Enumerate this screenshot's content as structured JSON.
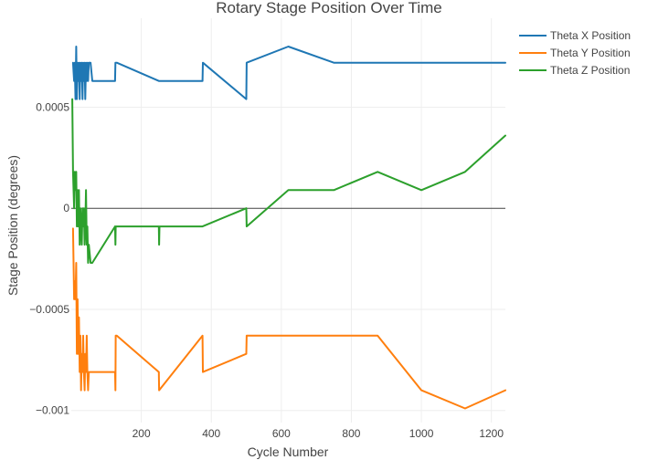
{
  "chart_data": {
    "type": "line",
    "title": "Rotary Stage Position Over Time",
    "xlabel": "Cycle Number",
    "ylabel": "Stage Position (degrees)",
    "xlim": [
      0,
      1240
    ],
    "ylim": [
      -0.00106,
      0.00094
    ],
    "x_ticks": [
      200,
      400,
      600,
      800,
      1000,
      1200
    ],
    "x_tick_labels": [
      "200",
      "400",
      "600",
      "800",
      "1000",
      "1200"
    ],
    "y_ticks": [
      -0.001,
      -0.0005,
      0,
      0.0005
    ],
    "y_tick_labels": [
      "−0.001",
      "−0.0005",
      "0",
      "0.0005"
    ],
    "legend_position": "top-right",
    "series": [
      {
        "name": "Theta X Position",
        "color": "#1f77b4",
        "x": [
          5,
          8,
          10,
          12,
          14,
          16,
          18,
          20,
          22,
          24,
          26,
          28,
          30,
          32,
          34,
          36,
          38,
          40,
          42,
          44,
          46,
          48,
          50,
          55,
          60,
          125,
          126,
          127,
          130,
          250,
          375,
          376,
          500,
          501,
          620,
          750,
          875,
          1000,
          1125,
          1240
        ],
        "y": [
          0.00072,
          0.00063,
          0.00072,
          0.00054,
          0.0008,
          0.00054,
          0.00072,
          0.00063,
          0.00072,
          0.00054,
          0.00072,
          0.00063,
          0.00072,
          0.00054,
          0.00072,
          0.00063,
          0.00072,
          0.00054,
          0.00072,
          0.00063,
          0.00072,
          0.00063,
          0.00072,
          0.00072,
          0.00063,
          0.00063,
          0.00072,
          0.00072,
          0.00072,
          0.00063,
          0.00063,
          0.00072,
          0.00054,
          0.00072,
          0.0008,
          0.00072,
          0.00072,
          0.00072,
          0.00072,
          0.00072
        ]
      },
      {
        "name": "Theta Y Position",
        "color": "#ff7f0e",
        "x": [
          5,
          8,
          10,
          12,
          14,
          16,
          18,
          20,
          22,
          24,
          26,
          28,
          30,
          32,
          34,
          36,
          38,
          40,
          42,
          44,
          46,
          48,
          50,
          55,
          60,
          125,
          126,
          127,
          130,
          250,
          251,
          375,
          376,
          500,
          501,
          620,
          750,
          875,
          1000,
          1125,
          1240
        ],
        "y": [
          -0.0001,
          -0.00045,
          -0.00036,
          -0.00045,
          -0.00027,
          -0.00072,
          -0.00045,
          -0.00072,
          -0.00054,
          -0.00081,
          -0.00063,
          -0.0009,
          -0.00072,
          -0.00081,
          -0.00063,
          -0.00081,
          -0.0009,
          -0.00072,
          -0.00081,
          -0.00063,
          -0.00081,
          -0.0009,
          -0.00081,
          -0.00081,
          -0.00081,
          -0.00081,
          -0.0009,
          -0.00063,
          -0.00063,
          -0.00081,
          -0.0009,
          -0.00063,
          -0.00081,
          -0.00072,
          -0.00063,
          -0.00063,
          -0.00063,
          -0.00063,
          -0.0009,
          -0.00099,
          -0.0009
        ]
      },
      {
        "name": "Theta Z Position",
        "color": "#2ca02c",
        "x": [
          3,
          5,
          8,
          10,
          12,
          14,
          16,
          18,
          20,
          22,
          24,
          26,
          28,
          30,
          32,
          34,
          36,
          38,
          40,
          42,
          44,
          46,
          48,
          50,
          55,
          60,
          125,
          126,
          127,
          130,
          250,
          251,
          252,
          375,
          500,
          501,
          620,
          750,
          875,
          1000,
          1125,
          1240
        ],
        "y": [
          0.00054,
          0.00018,
          0.0,
          0.00018,
          9e-05,
          0.00018,
          -9e-05,
          9e-05,
          -9e-05,
          9e-05,
          -0.00018,
          0.0,
          -9e-05,
          -0.00018,
          0.0,
          -9e-05,
          0.0,
          -0.00018,
          -9e-05,
          9e-05,
          -0.00018,
          -9e-05,
          -0.00027,
          -0.00018,
          -0.00027,
          -0.00027,
          -9e-05,
          -0.00018,
          -9e-05,
          -9e-05,
          -9e-05,
          -0.00018,
          -9e-05,
          -9e-05,
          0.0,
          -9e-05,
          9e-05,
          9e-05,
          0.00018,
          9e-05,
          0.00018,
          0.00036
        ]
      }
    ]
  }
}
